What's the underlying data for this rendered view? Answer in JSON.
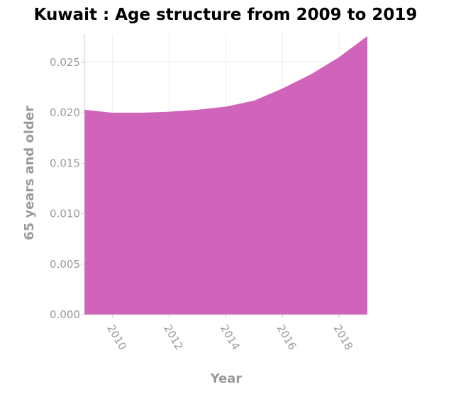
{
  "chart_data": {
    "type": "area",
    "title": "Kuwait : Age structure from 2009 to 2019",
    "xlabel": "Year",
    "ylabel": "65 years and older",
    "x": [
      2009,
      2010,
      2011,
      2012,
      2013,
      2014,
      2015,
      2016,
      2017,
      2018,
      2019
    ],
    "series": [
      {
        "values": [
          0.0203,
          0.02,
          0.02,
          0.0201,
          0.0203,
          0.0206,
          0.0212,
          0.0224,
          0.0238,
          0.0255,
          0.0276
        ]
      }
    ],
    "xlim": [
      2009,
      2019
    ],
    "ylim": [
      0,
      0.0278
    ],
    "x_ticks": [
      2010,
      2012,
      2014,
      2016,
      2018
    ],
    "y_ticks": [
      0.0,
      0.005,
      0.01,
      0.015,
      0.02,
      0.025
    ],
    "x_tick_labels": [
      "2010",
      "2012",
      "2014",
      "2016",
      "2018"
    ],
    "y_tick_labels": [
      "0.000",
      "0.005",
      "0.010",
      "0.015",
      "0.020",
      "0.025"
    ],
    "grid": true,
    "colors": {
      "fill": "#d063ba",
      "grid": "#ebebeb",
      "axis": "#cccccc"
    }
  }
}
